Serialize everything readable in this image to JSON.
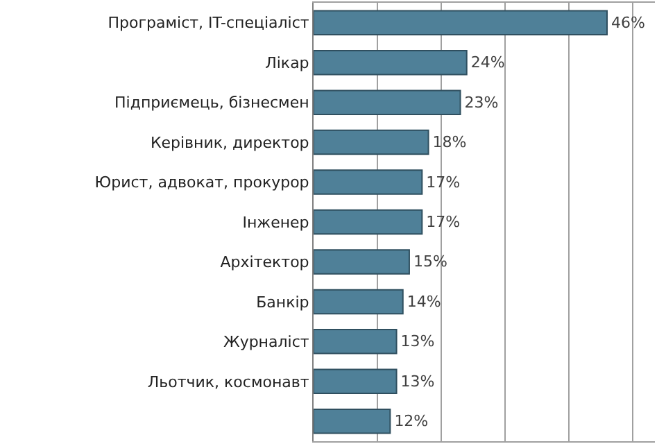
{
  "chart_data": {
    "type": "bar",
    "orientation": "horizontal",
    "categories": [
      "Програміст, IT-спеціаліст",
      "Лікар",
      "Підприємець, бізнесмен",
      "Керівник, директор",
      "Юрист, адвокат, прокурор",
      "Інженер",
      "Архітектор",
      "Банкір",
      "Журналіст",
      "Льотчик, космонавт",
      null
    ],
    "values": [
      46,
      24,
      23,
      18,
      17,
      17,
      15,
      14,
      13,
      13,
      12
    ],
    "value_labels": [
      "46%",
      "24%",
      "23%",
      "18%",
      "17%",
      "17%",
      "15%",
      "14%",
      "13%",
      "13%",
      "12%"
    ],
    "color": "#4f8098",
    "xlim": [
      0,
      53.5
    ],
    "xticks": [
      0,
      10,
      20,
      30,
      40,
      50
    ],
    "tick_labels": "y",
    "grid": "x",
    "legend": false
  }
}
